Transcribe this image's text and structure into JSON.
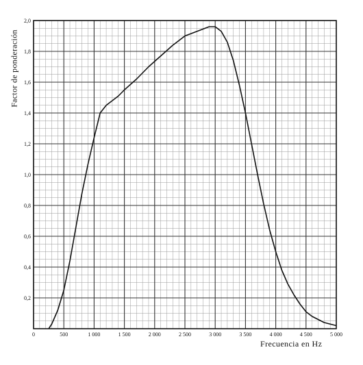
{
  "chart_data": {
    "type": "line",
    "title": "",
    "xlabel": "Frecuencia en Hz",
    "ylabel": "Factor de ponderación",
    "xlim": [
      0,
      5000
    ],
    "ylim": [
      0,
      2.0
    ],
    "x_ticks": [
      0,
      500,
      1000,
      1500,
      2000,
      2500,
      3000,
      3500,
      4000,
      4500,
      5000
    ],
    "x_tick_labels": [
      "0",
      "500",
      "1 000",
      "1 500",
      "2 000",
      "2 500",
      "3 000",
      "3 500",
      "4 000",
      "4 500",
      "5 000"
    ],
    "y_ticks": [
      0.2,
      0.4,
      0.6,
      0.8,
      1.0,
      1.2,
      1.4,
      1.6,
      1.8,
      2.0
    ],
    "y_tick_labels": [
      "0,2",
      "0,4",
      "0,6",
      "0,8",
      "1,0",
      "1,2",
      "1,4",
      "1,6",
      "1,8",
      "2,0"
    ],
    "grid": true,
    "series": [
      {
        "values_x": [
          250,
          300,
          400,
          500,
          600,
          700,
          800,
          900,
          1000,
          1100,
          1200,
          1300,
          1400,
          1500,
          1700,
          1900,
          2100,
          2300,
          2500,
          2700,
          2900,
          3000,
          3100,
          3200,
          3300,
          3400,
          3500,
          3600,
          3700,
          3800,
          3900,
          4000,
          4100,
          4200,
          4300,
          4400,
          4500,
          4600,
          4700,
          4800,
          4900,
          5000
        ],
        "values_y": [
          0.0,
          0.03,
          0.12,
          0.25,
          0.44,
          0.66,
          0.88,
          1.07,
          1.24,
          1.4,
          1.45,
          1.48,
          1.51,
          1.55,
          1.62,
          1.7,
          1.77,
          1.84,
          1.9,
          1.93,
          1.96,
          1.96,
          1.93,
          1.86,
          1.74,
          1.58,
          1.4,
          1.2,
          1.0,
          0.81,
          0.64,
          0.5,
          0.38,
          0.29,
          0.22,
          0.16,
          0.11,
          0.08,
          0.06,
          0.04,
          0.03,
          0.02
        ]
      }
    ]
  }
}
